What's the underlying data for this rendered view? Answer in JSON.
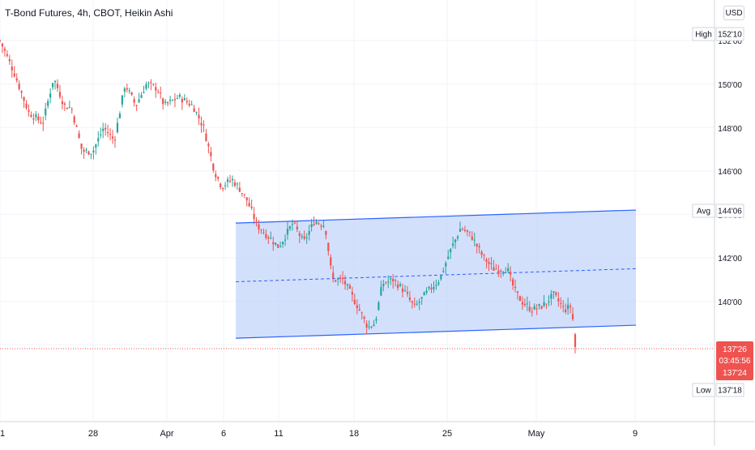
{
  "header": {
    "title": "T-Bond Futures, 4h, CBOT, Heikin Ashi",
    "currency_button": "USD"
  },
  "colors": {
    "up": "#26a69a",
    "down": "#ef5350",
    "channel_line": "#2962ff",
    "channel_fill": "#bbd0fb",
    "grid": "#f0f3fa",
    "axis_text": "#131722",
    "last_price_line": "#ef5350"
  },
  "price_scale": {
    "labels": [
      "152'00",
      "150'00",
      "148'00",
      "146'00",
      "144'00",
      "142'00",
      "140'00",
      "138'00"
    ],
    "tags": [
      {
        "name": "High",
        "value": "152'10"
      },
      {
        "name": "Avg",
        "value": "144'06"
      },
      {
        "name": "Low",
        "value": "137'18"
      }
    ],
    "last_price": {
      "value": "137'26",
      "countdown": "03:45:56",
      "prev": "137'24"
    }
  },
  "time_axis": {
    "labels": [
      "1",
      "28",
      "Apr",
      "6",
      "11",
      "18",
      "25",
      "May",
      "9"
    ]
  },
  "chart_data": {
    "type": "candlestick",
    "style": "Heikin Ashi",
    "title": "T-Bond Futures, 4h, CBOT, Heikin Ashi",
    "ylim": [
      136.5,
      154.0
    ],
    "grid": true,
    "y_ticks": [
      "152'00",
      "150'00",
      "148'00",
      "146'00",
      "144'00",
      "142'00",
      "140'00",
      "138'00"
    ],
    "x_ticks": [
      "1",
      "28",
      "Apr",
      "6",
      "11",
      "18",
      "25",
      "May",
      "9"
    ],
    "last_price": "137'26",
    "session_high": "152'10",
    "session_low": "137'18",
    "channel": {
      "upper": {
        "from": [
          0.33,
          143.6
        ],
        "to": [
          0.89,
          144.2
        ]
      },
      "lower": {
        "from": [
          0.33,
          138.3
        ],
        "to": [
          0.89,
          138.9
        ]
      },
      "middle": {
        "from": [
          0.33,
          140.9
        ],
        "to": [
          0.89,
          141.5
        ]
      }
    },
    "close_path": [
      [
        0,
        152.0
      ],
      [
        0.02,
        150.5
      ],
      [
        0.04,
        148.7
      ],
      [
        0.06,
        148.2
      ],
      [
        0.075,
        150.3
      ],
      [
        0.09,
        149.0
      ],
      [
        0.1,
        148.9
      ],
      [
        0.115,
        146.9
      ],
      [
        0.13,
        146.9
      ],
      [
        0.145,
        148.0
      ],
      [
        0.16,
        147.4
      ],
      [
        0.175,
        150.0
      ],
      [
        0.19,
        149.0
      ],
      [
        0.205,
        150.0
      ],
      [
        0.22,
        149.8
      ],
      [
        0.23,
        149.0
      ],
      [
        0.25,
        149.4
      ],
      [
        0.27,
        149.0
      ],
      [
        0.285,
        148.0
      ],
      [
        0.3,
        146.0
      ],
      [
        0.31,
        145.3
      ],
      [
        0.325,
        145.6
      ],
      [
        0.335,
        145.2
      ],
      [
        0.345,
        144.7
      ],
      [
        0.36,
        143.5
      ],
      [
        0.375,
        143.0
      ],
      [
        0.39,
        142.5
      ],
      [
        0.41,
        143.6
      ],
      [
        0.425,
        142.7
      ],
      [
        0.44,
        143.7
      ],
      [
        0.455,
        143.5
      ],
      [
        0.465,
        141.0
      ],
      [
        0.48,
        141.0
      ],
      [
        0.5,
        139.8
      ],
      [
        0.515,
        138.8
      ],
      [
        0.525,
        139.0
      ],
      [
        0.535,
        140.8
      ],
      [
        0.55,
        141.0
      ],
      [
        0.565,
        140.5
      ],
      [
        0.58,
        139.7
      ],
      [
        0.6,
        140.5
      ],
      [
        0.615,
        141.0
      ],
      [
        0.63,
        142.3
      ],
      [
        0.645,
        143.4
      ],
      [
        0.66,
        143.0
      ],
      [
        0.675,
        142.1
      ],
      [
        0.69,
        141.5
      ],
      [
        0.71,
        141.5
      ],
      [
        0.72,
        140.5
      ],
      [
        0.73,
        140.0
      ],
      [
        0.745,
        139.6
      ],
      [
        0.76,
        139.8
      ],
      [
        0.775,
        140.3
      ],
      [
        0.79,
        139.6
      ],
      [
        0.8,
        139.8
      ],
      [
        0.805,
        137.9
      ]
    ]
  }
}
